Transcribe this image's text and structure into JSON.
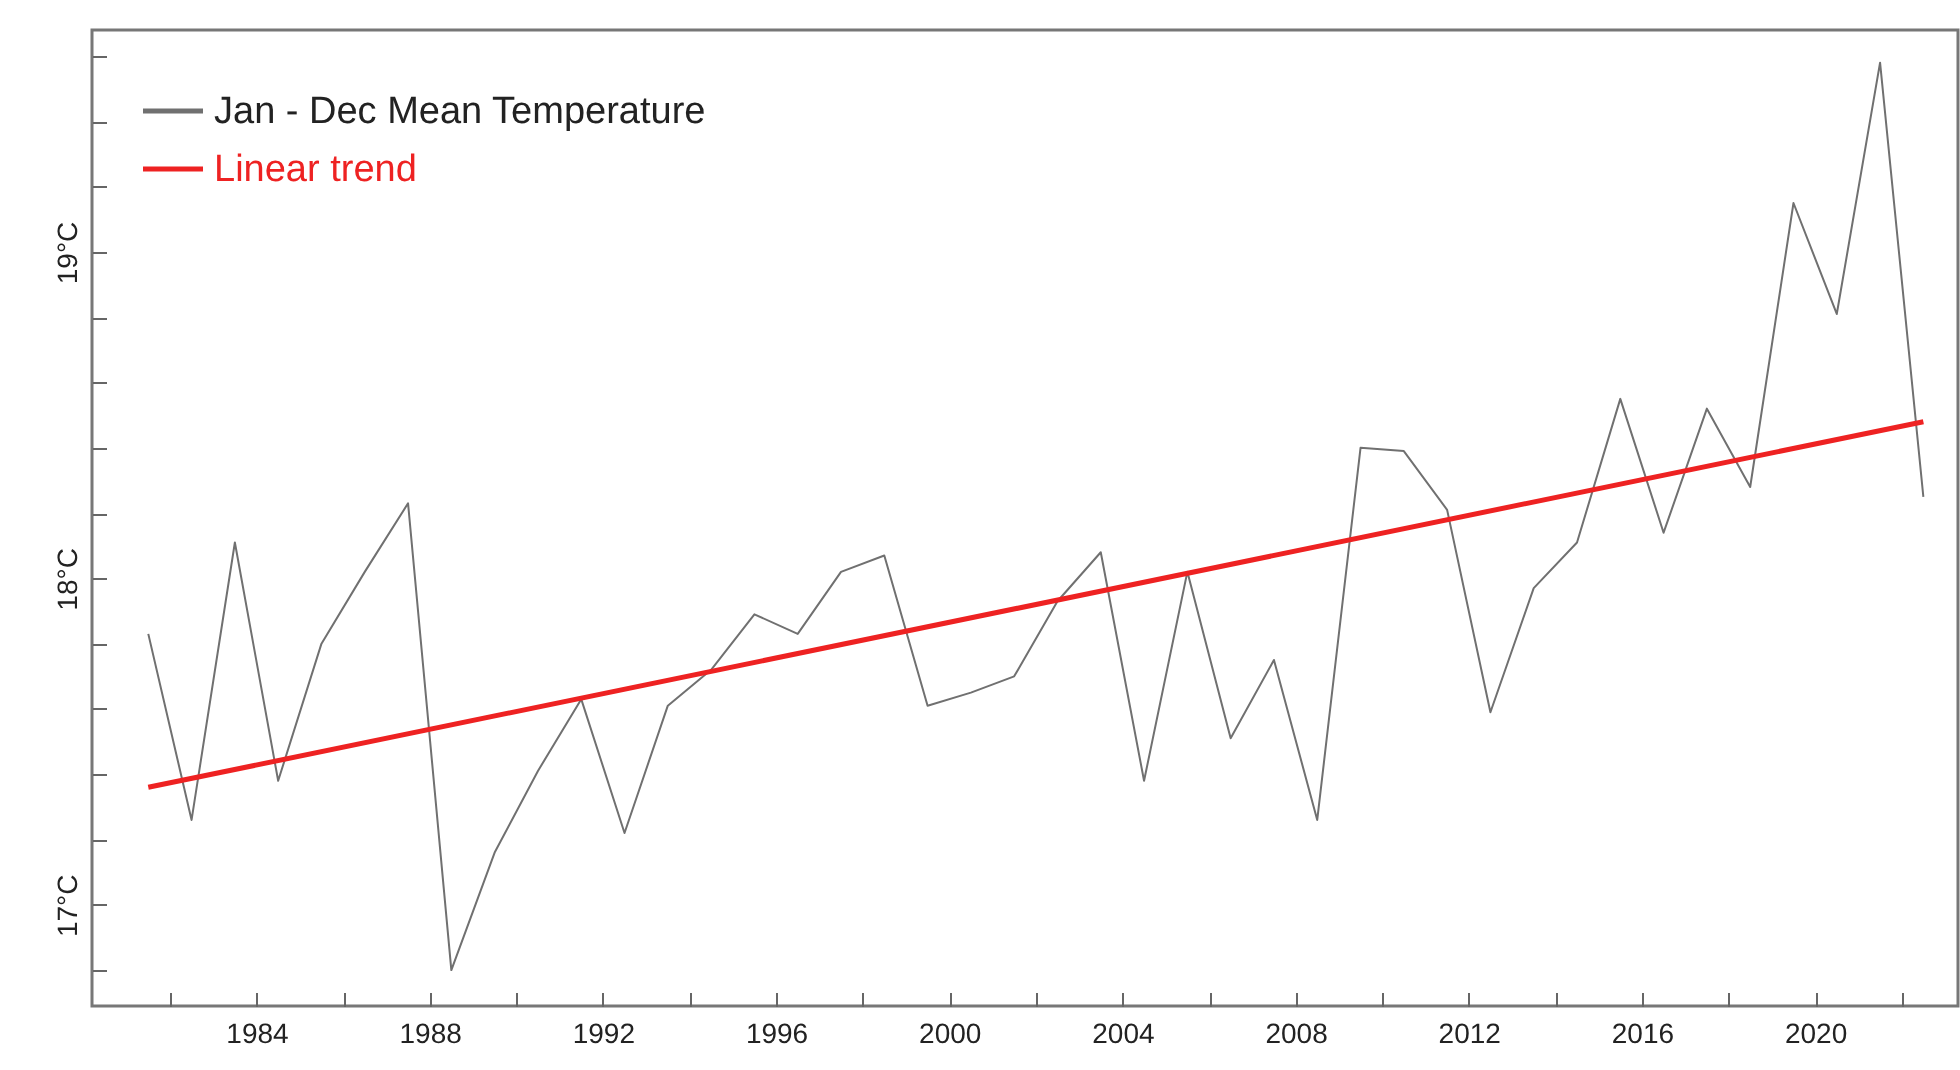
{
  "chart_data": {
    "type": "line",
    "xlim": [
      1980.2,
      2023.3
    ],
    "xticks": [
      {
        "value": 1982,
        "label": null
      },
      1984,
      {
        "value": 1986,
        "label": null
      },
      1988,
      {
        "value": 1990,
        "label": null
      },
      1992,
      {
        "value": 1994,
        "label": null
      },
      1996,
      {
        "value": 1998,
        "label": null
      },
      2000,
      {
        "value": 2002,
        "label": null
      },
      2004,
      {
        "value": 2006,
        "label": null
      },
      2008,
      {
        "value": 2010,
        "label": null
      },
      2012,
      {
        "value": 2014,
        "label": null
      },
      2016,
      {
        "value": 2018,
        "label": null
      },
      2020,
      {
        "value": 2022,
        "label": null
      }
    ],
    "ylim": [
      16.69,
      19.68
    ],
    "yticks": [
      {
        "value": 16.8,
        "label": null
      },
      {
        "value": 17,
        "label": "17°C"
      },
      {
        "value": 17.2,
        "label": null
      },
      {
        "value": 17.4,
        "label": null
      },
      {
        "value": 17.6,
        "label": null
      },
      {
        "value": 17.8,
        "label": null
      },
      {
        "value": 18,
        "label": "18°C"
      },
      {
        "value": 18.2,
        "label": null
      },
      {
        "value": 18.4,
        "label": null
      },
      {
        "value": 18.6,
        "label": null
      },
      {
        "value": 18.8,
        "label": null
      },
      {
        "value": 19,
        "label": "19°C"
      },
      {
        "value": 19.2,
        "label": null
      },
      {
        "value": 19.4,
        "label": null
      },
      {
        "value": 19.6,
        "label": null
      }
    ],
    "legend": "top left",
    "grid": false,
    "marker": "none",
    "series": [
      {
        "name": "Jan - Dec Mean Temperature",
        "color": "#707070",
        "type": "line",
        "x": [
          1981.5,
          1982.5,
          1983.5,
          1984.5,
          1985.5,
          1986.5,
          1987.5,
          1988.5,
          1989.5,
          1990.5,
          1991.5,
          1992.5,
          1993.5,
          1994.5,
          1995.5,
          1996.5,
          1997.5,
          1998.5,
          1999.5,
          2000.5,
          2001.5,
          2002.5,
          2003.5,
          2004.5,
          2005.5,
          2006.5,
          2007.5,
          2008.5,
          2009.5,
          2010.5,
          2011.5,
          2012.5,
          2013.5,
          2014.5,
          2015.5,
          2016.5,
          2017.5,
          2018.5,
          2019.5,
          2020.5,
          2021.5,
          2022.5
        ],
        "values": [
          17.83,
          17.26,
          18.11,
          17.38,
          17.8,
          18.02,
          18.23,
          16.8,
          17.16,
          17.41,
          17.63,
          17.22,
          17.61,
          17.72,
          17.89,
          17.83,
          18.02,
          18.07,
          17.61,
          17.65,
          17.7,
          17.93,
          18.08,
          17.38,
          18.02,
          17.51,
          17.75,
          17.26,
          18.4,
          18.39,
          18.21,
          17.59,
          17.97,
          18.11,
          18.55,
          18.14,
          18.52,
          18.28,
          19.15,
          18.81,
          19.58,
          18.25
        ]
      },
      {
        "name": "Linear trend",
        "color": "#ee2222",
        "type": "line",
        "x": [
          1981.5,
          2022.5
        ],
        "values": [
          17.36,
          18.48
        ]
      }
    ]
  }
}
